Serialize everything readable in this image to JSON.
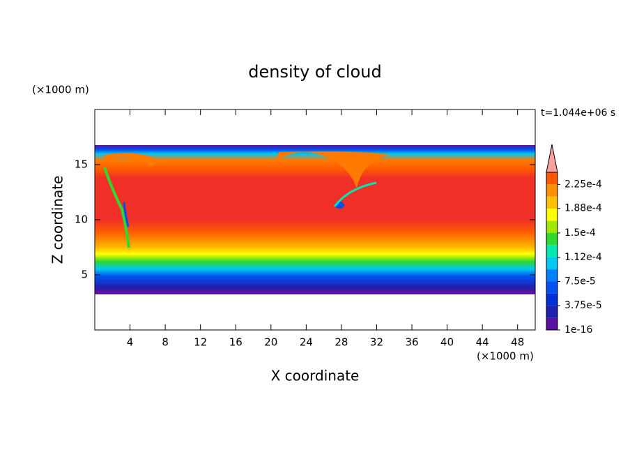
{
  "chart_data": {
    "type": "contour",
    "title": "density of cloud",
    "x_label": "X coordinate",
    "y_label": "Z coordinate",
    "x_unit": "(×1000 m)",
    "y_unit": "(×1000 m)",
    "time_label": "t=1.044e+06 s",
    "xlim": [
      0,
      50
    ],
    "xticks": [
      4,
      8,
      12,
      16,
      20,
      24,
      28,
      32,
      36,
      40,
      44,
      48
    ],
    "ylim": [
      0,
      20
    ],
    "yticks": [
      5,
      10,
      15
    ],
    "colorbar": {
      "lim": [
        0,
        0.00024375
      ],
      "ticks": [
        {
          "value": 1e-16,
          "label": "1e-16"
        },
        {
          "value": 3.75e-05,
          "label": "3.75e-5"
        },
        {
          "value": 7.5e-05,
          "label": "7.5e-5"
        },
        {
          "value": 0.000112,
          "label": "1.12e-4"
        },
        {
          "value": 0.00015,
          "label": "1.5e-4"
        },
        {
          "value": 0.000188,
          "label": "1.88e-4"
        },
        {
          "value": 0.000225,
          "label": "2.25e-4"
        }
      ],
      "colors": [
        "#5a10a0",
        "#2020b0",
        "#0030d8",
        "#0050f0",
        "#0080ff",
        "#00c8f0",
        "#00e8b0",
        "#30d830",
        "#a0e800",
        "#ffff00",
        "#ffc000",
        "#ff9000",
        "#ff5a00"
      ],
      "extend": "max",
      "extend_color": "#ffa0a0",
      "top_color": "#f03028"
    }
  }
}
